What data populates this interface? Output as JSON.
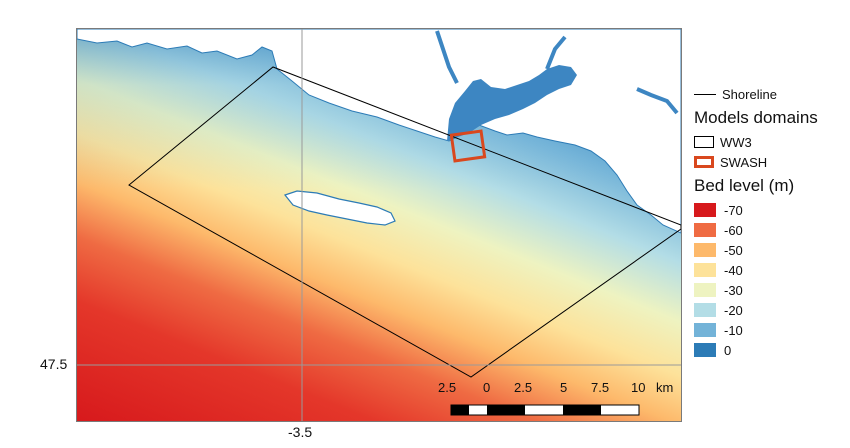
{
  "axes": {
    "lat_label": "47.5",
    "lon_label": "-3.5"
  },
  "legend": {
    "shoreline_label": "Shoreline",
    "models_title": "Models domains",
    "ww3_label": "WW3",
    "swash_label": "SWASH",
    "ww3_color": "#000000",
    "swash_color": "#d9481e",
    "bed_title": "Bed level (m)",
    "bed_levels": [
      {
        "label": "-70",
        "color": "#d7191c"
      },
      {
        "label": "-60",
        "color": "#ef6b43"
      },
      {
        "label": "-50",
        "color": "#fdb96b"
      },
      {
        "label": "-40",
        "color": "#fde29a"
      },
      {
        "label": "-30",
        "color": "#eef3c1"
      },
      {
        "label": "-20",
        "color": "#b3dde6"
      },
      {
        "label": "-10",
        "color": "#73b3d8"
      },
      {
        "label": "0",
        "color": "#2c7bb6"
      }
    ]
  },
  "scalebar": {
    "labels": [
      "2.5",
      "0",
      "2.5",
      "5",
      "7.5",
      "10"
    ],
    "unit": "km"
  }
}
